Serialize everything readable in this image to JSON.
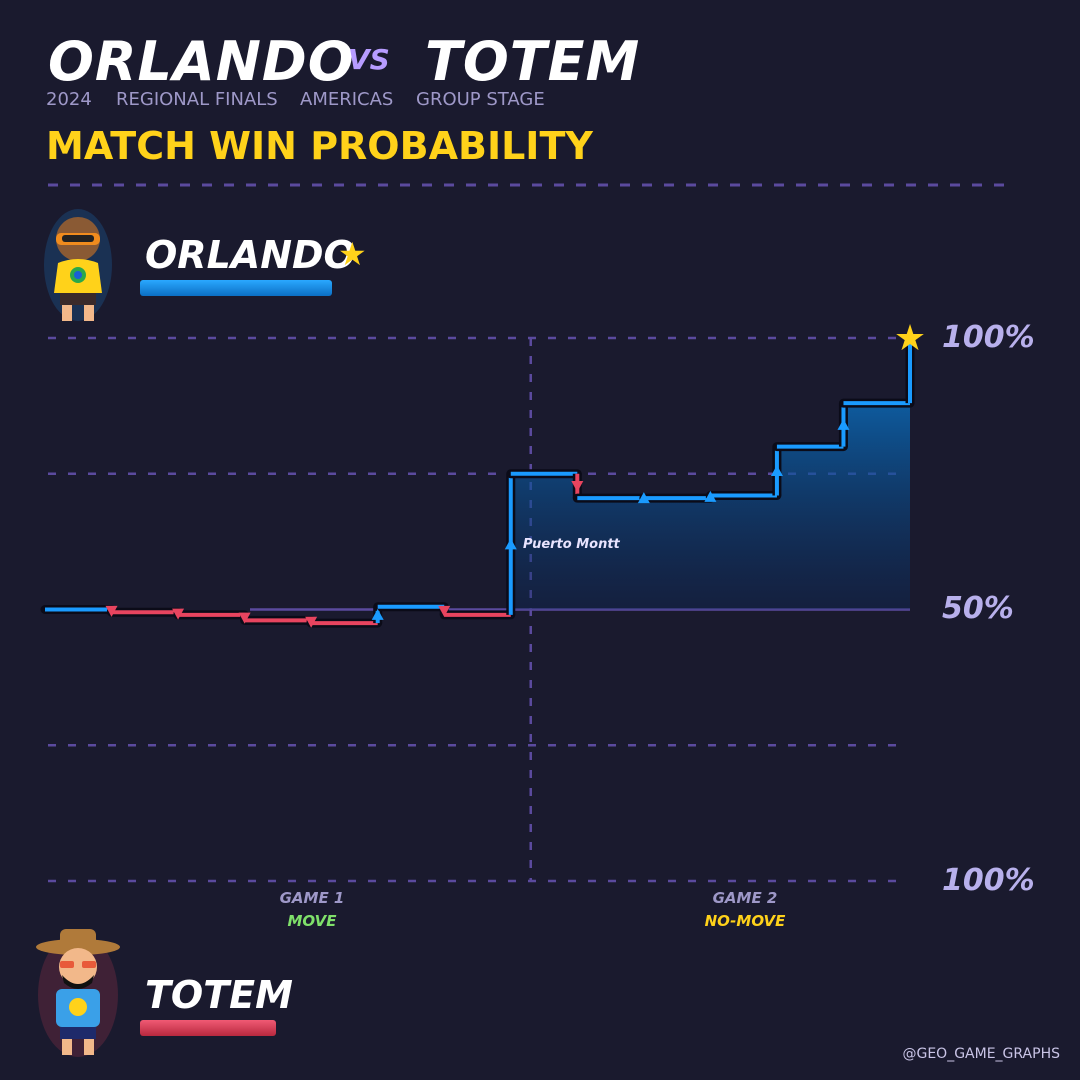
{
  "header": {
    "player1": "ORLANDO",
    "vs": "VS",
    "player2": "TOTEM",
    "meta": [
      "2024",
      "REGIONAL FINALS",
      "AMERICAS",
      "GROUP STAGE"
    ],
    "section_title": "MATCH WIN PROBABILITY"
  },
  "players": {
    "top": {
      "name": "ORLANDO",
      "winner_star": "★",
      "color": "#1a9bff",
      "avatar_icon": "orlando-avatar-icon"
    },
    "bottom": {
      "name": "TOTEM",
      "color": "#e8445f",
      "avatar_icon": "totem-avatar-icon"
    }
  },
  "colors": {
    "background": "#1a1a2e",
    "accent_yellow": "#ffd21a",
    "grid": "#5b4a9e",
    "positive": "#1a9bff",
    "negative": "#e8445f"
  },
  "credit": "@GEO_GAME_GRAPHS",
  "chart_data": {
    "type": "line",
    "step": true,
    "title": "MATCH WIN PROBABILITY",
    "y_ticks": [
      {
        "value": 100,
        "label": "100%"
      },
      {
        "value": 50,
        "label": "50%"
      },
      {
        "value": 0,
        "label": "100%"
      }
    ],
    "ylim": [
      0,
      100
    ],
    "xlim": [
      0,
      13
    ],
    "games": [
      {
        "label": "GAME 1",
        "mode": "MOVE",
        "mode_color": "#7fe06a",
        "center": 4
      },
      {
        "label": "GAME 2",
        "mode": "NO-MOVE",
        "mode_color": "#ffd21a",
        "center": 10.5
      }
    ],
    "game_boundary_x": 7.3,
    "series": [
      {
        "x": [
          0,
          1,
          2,
          3,
          4,
          5,
          6,
          7,
          8,
          9,
          10,
          11,
          12,
          13
        ],
        "y": [
          50,
          49.5,
          49,
          48,
          47.5,
          50.5,
          49,
          75,
          70.5,
          70.5,
          71,
          80,
          88,
          100
        ]
      }
    ],
    "annotations": [
      {
        "x": 7,
        "y": 62,
        "text": "Puerto Montt"
      }
    ],
    "winner_marker": {
      "x": 13,
      "y": 100,
      "symbol": "★"
    }
  }
}
